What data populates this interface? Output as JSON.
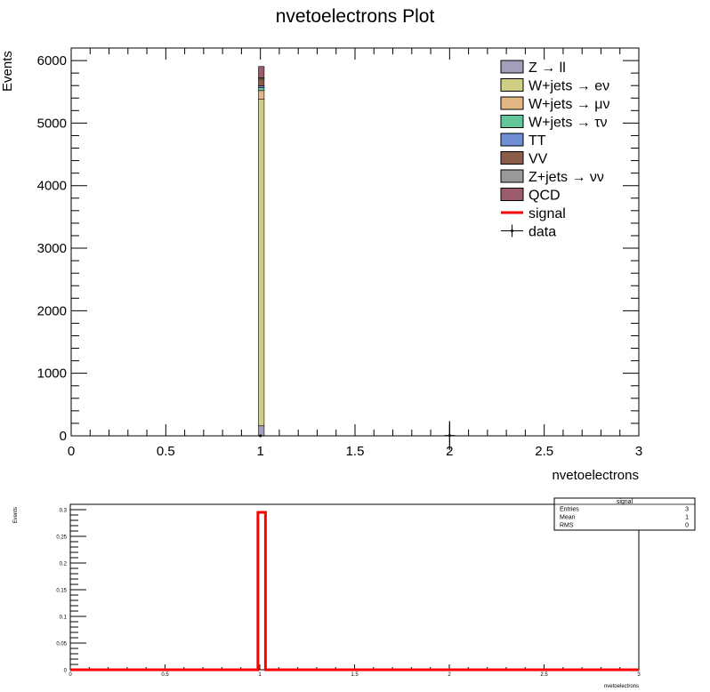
{
  "chart_data": [
    {
      "type": "bar",
      "stacked": true,
      "title": "nvetoelectrons Plot",
      "xlabel": "nvetoelectrons",
      "ylabel": "Events",
      "xlim": [
        0,
        3
      ],
      "ylim": [
        0,
        6200
      ],
      "x_ticks": [
        "0",
        "0.5",
        "1",
        "1.5",
        "2",
        "2.5",
        "3"
      ],
      "y_ticks": [
        "0",
        "1000",
        "2000",
        "3000",
        "4000",
        "5000",
        "6000"
      ],
      "bin_width": 0.03,
      "bin_low_edge": 0.99,
      "legend_position": "top-right",
      "series": [
        {
          "name": "Z → ll",
          "value": 160,
          "color": "#a59dbc"
        },
        {
          "name": "W+jets → eν",
          "value": 5220,
          "color": "#cfcf83"
        },
        {
          "name": "W+jets → μν",
          "value": 140,
          "color": "#e2b784"
        },
        {
          "name": "W+jets → τν",
          "value": 45,
          "color": "#62c69a"
        },
        {
          "name": "TT",
          "value": 30,
          "color": "#6f90d6"
        },
        {
          "name": "VV",
          "value": 110,
          "color": "#8a5c49"
        },
        {
          "name": "Z+jets → νν",
          "value": 20,
          "color": "#9a9a9a"
        },
        {
          "name": "QCD",
          "value": 180,
          "color": "#9b5d6b"
        }
      ],
      "signal": {
        "name": "signal",
        "color": "#ff0000"
      },
      "data": {
        "name": "data",
        "points": [
          {
            "x": 1.0,
            "y": 0,
            "err": 15
          },
          {
            "x": 2.0,
            "y": 5,
            "err": 230
          }
        ]
      }
    },
    {
      "type": "bar",
      "title": "",
      "xlabel": "nvetoelectrons",
      "ylabel": "Events",
      "xlim": [
        0,
        3
      ],
      "ylim": [
        0,
        0.31
      ],
      "x_ticks": [
        "0",
        "0.5",
        "1",
        "1.5",
        "2",
        "2.5",
        "3"
      ],
      "y_ticks": [
        "0",
        "0.05",
        "0.1",
        "0.15",
        "0.2",
        "0.25",
        "0.3"
      ],
      "series": [
        {
          "name": "signal",
          "bins": [
            {
              "low": 0.99,
              "high": 1.03,
              "value": 0.295
            }
          ],
          "color": "#ff0000"
        }
      ],
      "stats_box": {
        "title": "signal",
        "rows": [
          {
            "label": "Entries",
            "value": "3"
          },
          {
            "label": "Mean",
            "value": "1"
          },
          {
            "label": "RMS",
            "value": "0"
          }
        ]
      }
    }
  ]
}
